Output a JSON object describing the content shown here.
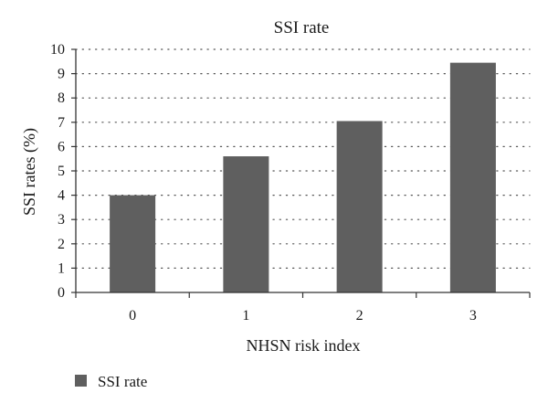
{
  "chart_data": {
    "type": "bar",
    "title": "SSI rate",
    "xlabel": "NHSN risk index",
    "ylabel": "SSI rates (%)",
    "categories": [
      "0",
      "1",
      "2",
      "3"
    ],
    "series": [
      {
        "name": "SSI rate",
        "values": [
          4.0,
          5.6,
          7.05,
          9.45
        ]
      }
    ],
    "ylim": [
      0,
      10
    ],
    "yticks": [
      "0",
      "1",
      "2",
      "3",
      "4",
      "5",
      "6",
      "7",
      "8",
      "9",
      "10"
    ],
    "grid": "horizontal dotted",
    "legend": "bottom-left",
    "bar_color": "#5f5f5f",
    "axis_color": "#333333",
    "grid_color": "#555555"
  }
}
